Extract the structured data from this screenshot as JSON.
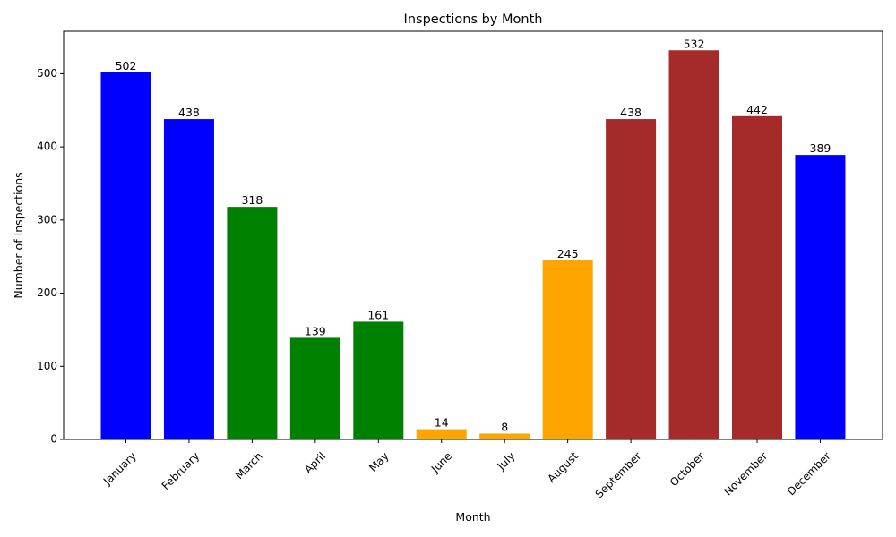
{
  "chart_data": {
    "type": "bar",
    "title": "Inspections by Month",
    "xlabel": "Month",
    "ylabel": "Number of Inspections",
    "categories": [
      "January",
      "February",
      "March",
      "April",
      "May",
      "June",
      "July",
      "August",
      "September",
      "October",
      "November",
      "December"
    ],
    "values": [
      502,
      438,
      318,
      139,
      161,
      14,
      8,
      245,
      438,
      532,
      442,
      389
    ],
    "bar_colors": [
      "#0000ff",
      "#0000ff",
      "#008000",
      "#008000",
      "#008000",
      "#ffa500",
      "#ffa500",
      "#ffa500",
      "#a52a2a",
      "#a52a2a",
      "#a52a2a",
      "#0000ff"
    ],
    "ylim": [
      0,
      558
    ],
    "yticks": [
      0,
      100,
      200,
      300,
      400,
      500
    ],
    "grid": false,
    "legend": "none"
  }
}
